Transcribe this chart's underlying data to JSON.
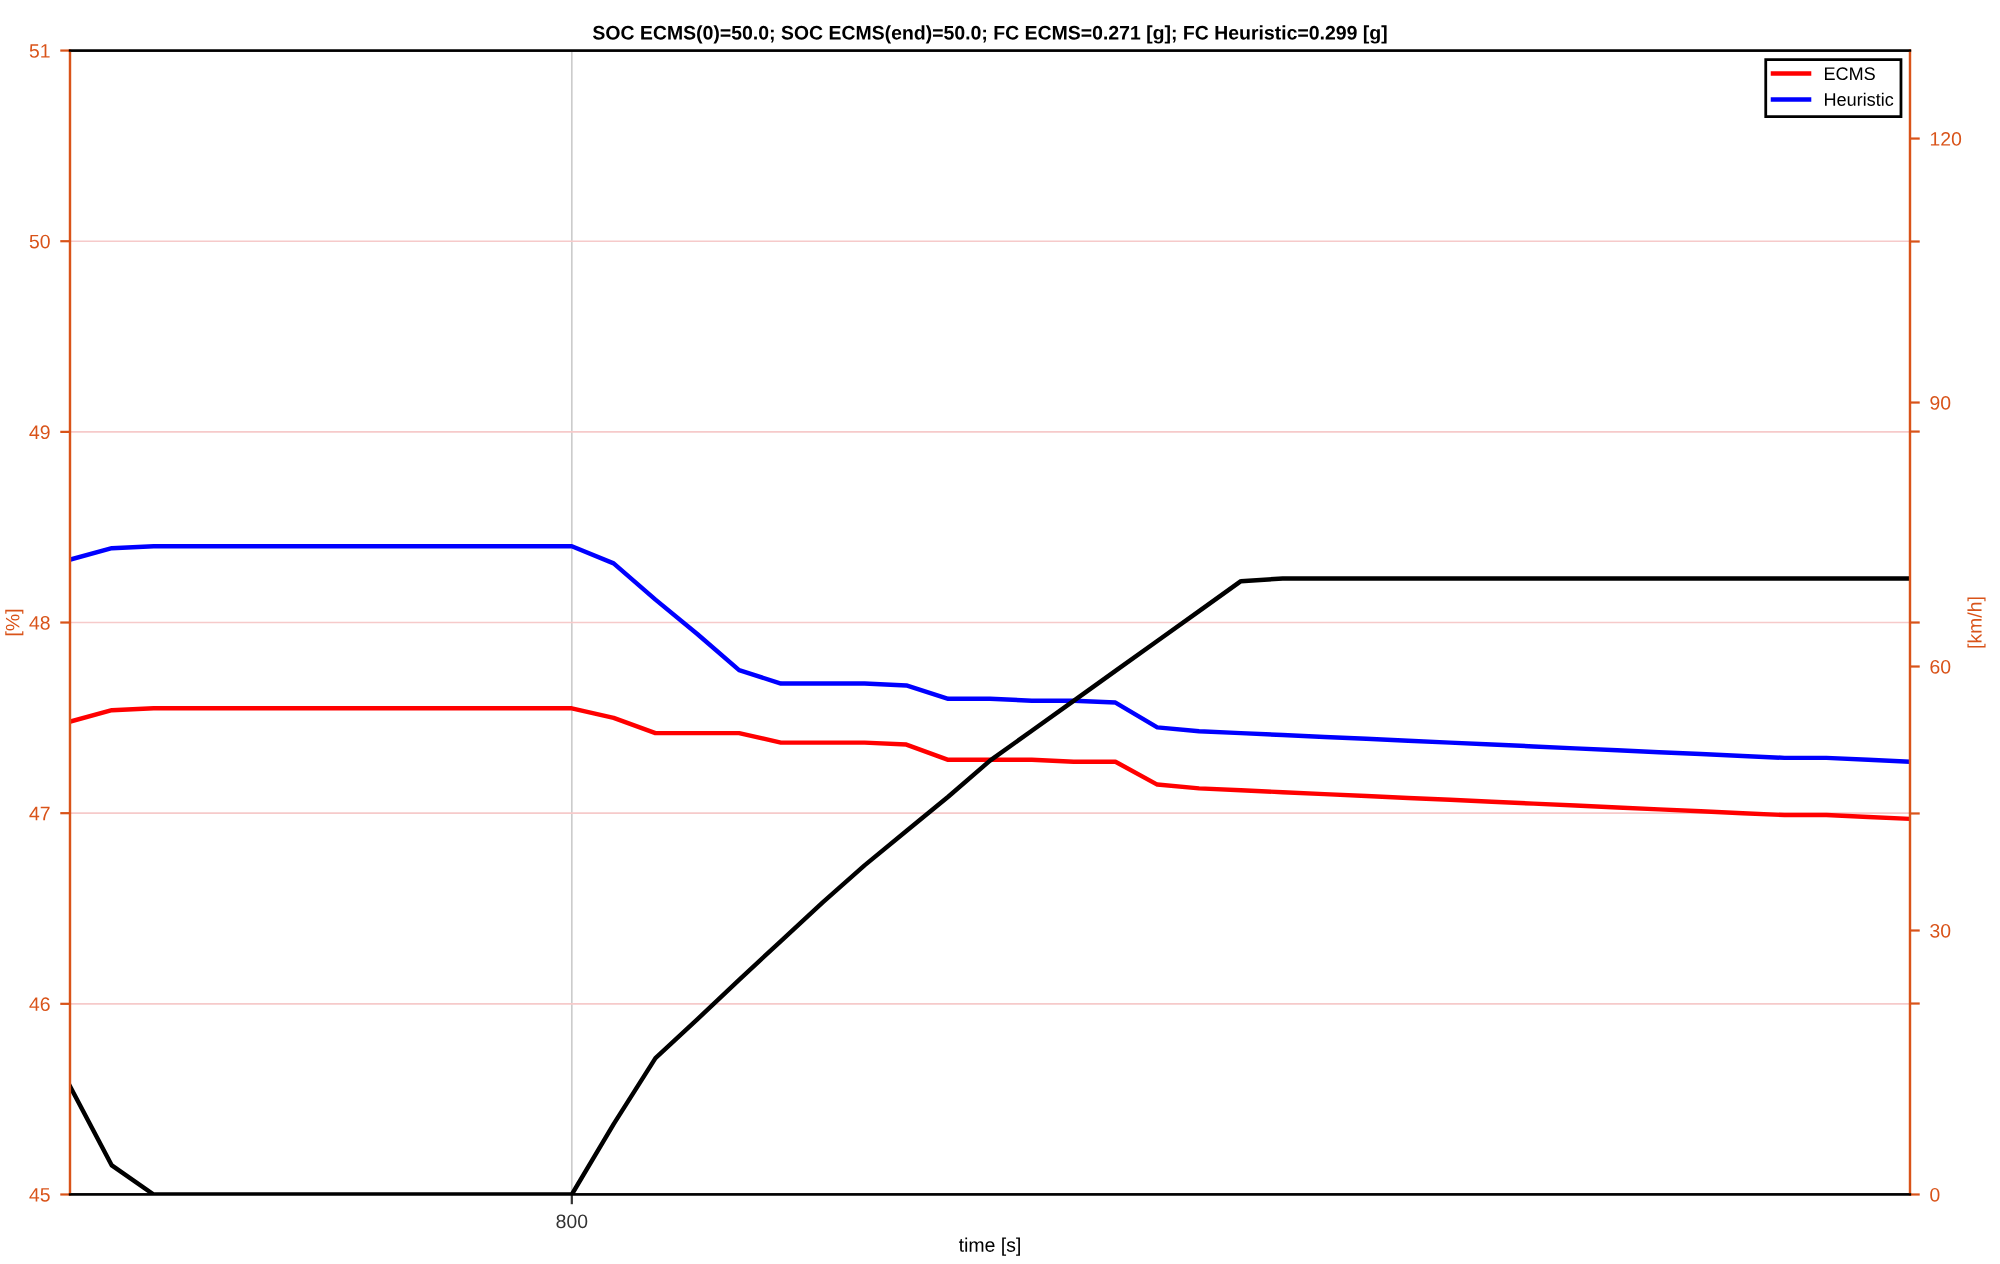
{
  "chart_data": {
    "type": "line",
    "title": "SOC ECMS(0)=50.0; SOC ECMS(end)=50.0; FC ECMS=0.271 [g]; FC Heuristic=0.299 [g]",
    "xlabel": "time [s]",
    "ylabel": "[%]",
    "y2label": "[km/h]",
    "categories": [
      null,
      null,
      null,
      null,
      null,
      null,
      null,
      null,
      null,
      null,
      null,
      null,
      "800",
      null,
      null,
      null,
      null,
      null,
      null,
      null,
      null,
      null,
      null,
      null,
      null,
      null,
      null,
      null,
      null,
      null,
      null,
      null,
      null,
      null,
      null,
      null,
      null,
      null,
      null,
      null,
      null,
      null,
      null,
      null,
      null
    ],
    "series": [
      {
        "name": "ECMS",
        "color": "#ff0000",
        "values": [
          47.48,
          47.54,
          47.55,
          47.55,
          47.55,
          47.55,
          47.55,
          47.55,
          47.55,
          47.55,
          47.55,
          47.55,
          47.55,
          47.5,
          47.42,
          47.42,
          47.42,
          47.37,
          47.37,
          47.37,
          47.36,
          47.28,
          47.28,
          47.28,
          47.27,
          47.27,
          47.15,
          47.13,
          47.12,
          47.11,
          47.1,
          47.09,
          47.08,
          47.07,
          47.06,
          47.05,
          47.04,
          47.03,
          47.02,
          47.01,
          47.0,
          46.99,
          46.99,
          46.98,
          46.97
        ]
      },
      {
        "name": "Heuristic",
        "color": "#0000ff",
        "values": [
          48.33,
          48.39,
          48.4,
          48.4,
          48.4,
          48.4,
          48.4,
          48.4,
          48.4,
          48.4,
          48.4,
          48.4,
          48.4,
          48.31,
          48.12,
          47.94,
          47.75,
          47.68,
          47.68,
          47.68,
          47.67,
          47.6,
          47.6,
          47.59,
          47.59,
          47.58,
          47.45,
          47.43,
          47.42,
          47.41,
          47.4,
          47.39,
          47.38,
          47.37,
          47.36,
          47.35,
          47.34,
          47.33,
          47.32,
          47.31,
          47.3,
          47.29,
          47.29,
          47.28,
          47.27
        ]
      },
      {
        "axis": "y2",
        "color": "#000000",
        "values": [
          12.3,
          3.3,
          0,
          0,
          0,
          0,
          0,
          0,
          0,
          0,
          0,
          0,
          0,
          8.0,
          15.5,
          19.9,
          24.4,
          28.8,
          33.2,
          37.4,
          41.3,
          45.2,
          49.3,
          52.7,
          56.1,
          59.5,
          62.9,
          66.3,
          69.7,
          70,
          70,
          70,
          70,
          70,
          70,
          70,
          70,
          70,
          70,
          70,
          70,
          70,
          70,
          70,
          70
        ]
      }
    ],
    "ylim": [
      45,
      51
    ],
    "yticks": [
      45,
      46,
      47,
      48,
      49,
      50,
      51
    ],
    "y2lim": [
      0,
      130
    ],
    "y2ticks": [
      0,
      {
        "value": 21.7,
        "label": null
      },
      30,
      {
        "value": 43.3,
        "label": null
      },
      60,
      {
        "value": 65,
        "label": null
      },
      {
        "value": 86.7,
        "label": null
      },
      90,
      {
        "value": 108.3,
        "label": null
      },
      120
    ],
    "grid": true,
    "legend": "top right",
    "line_style": "solid",
    "marker": "none"
  }
}
